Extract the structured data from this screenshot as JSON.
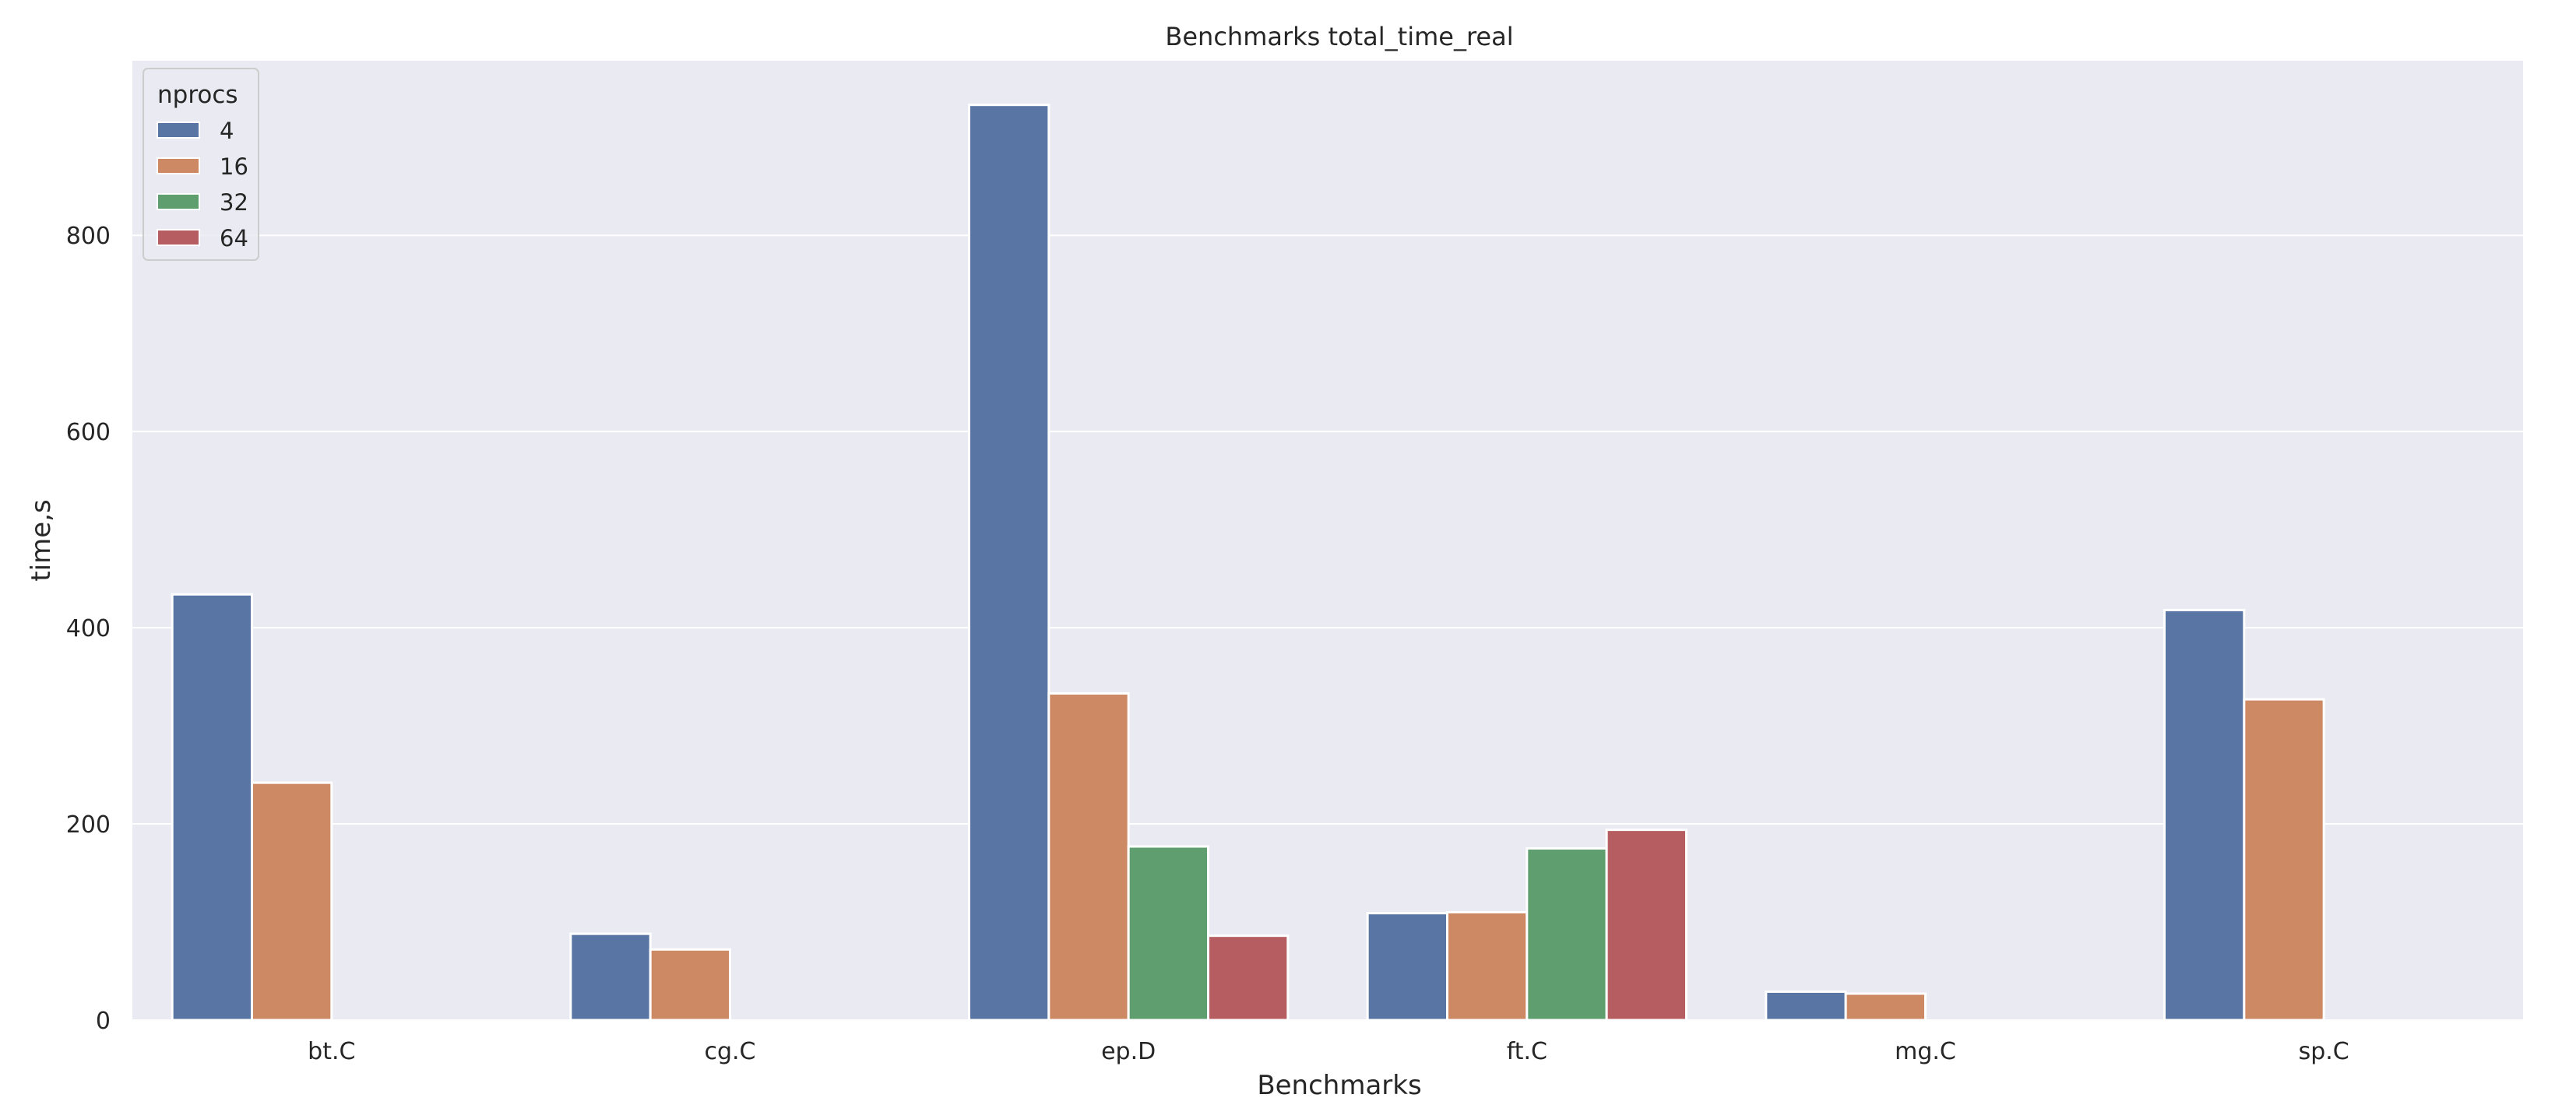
{
  "chart_data": {
    "type": "bar",
    "title": "Benchmarks total_time_real",
    "xlabel": "Benchmarks",
    "ylabel": "time,s",
    "categories": [
      "bt.C",
      "cg.C",
      "ep.D",
      "ft.C",
      "mg.C",
      "sp.C"
    ],
    "legend": {
      "title": "nprocs",
      "placement": "top-left"
    },
    "series": [
      {
        "name": "4",
        "color": "#5875a4",
        "values": [
          434,
          88,
          933,
          109,
          29,
          418
        ]
      },
      {
        "name": "16",
        "color": "#cc8963",
        "values": [
          242,
          72,
          333,
          110,
          27,
          327
        ]
      },
      {
        "name": "32",
        "color": "#5f9e6e",
        "values": [
          null,
          null,
          177,
          175,
          null,
          null
        ]
      },
      {
        "name": "64",
        "color": "#b55d60",
        "values": [
          null,
          null,
          86,
          194,
          null,
          null
        ]
      }
    ],
    "ylim": [
      0,
      978
    ],
    "yticks": [
      0,
      200,
      400,
      600,
      800
    ],
    "grid": true,
    "plot_background": "#eaeaf2",
    "grid_color": "#ffffff"
  }
}
